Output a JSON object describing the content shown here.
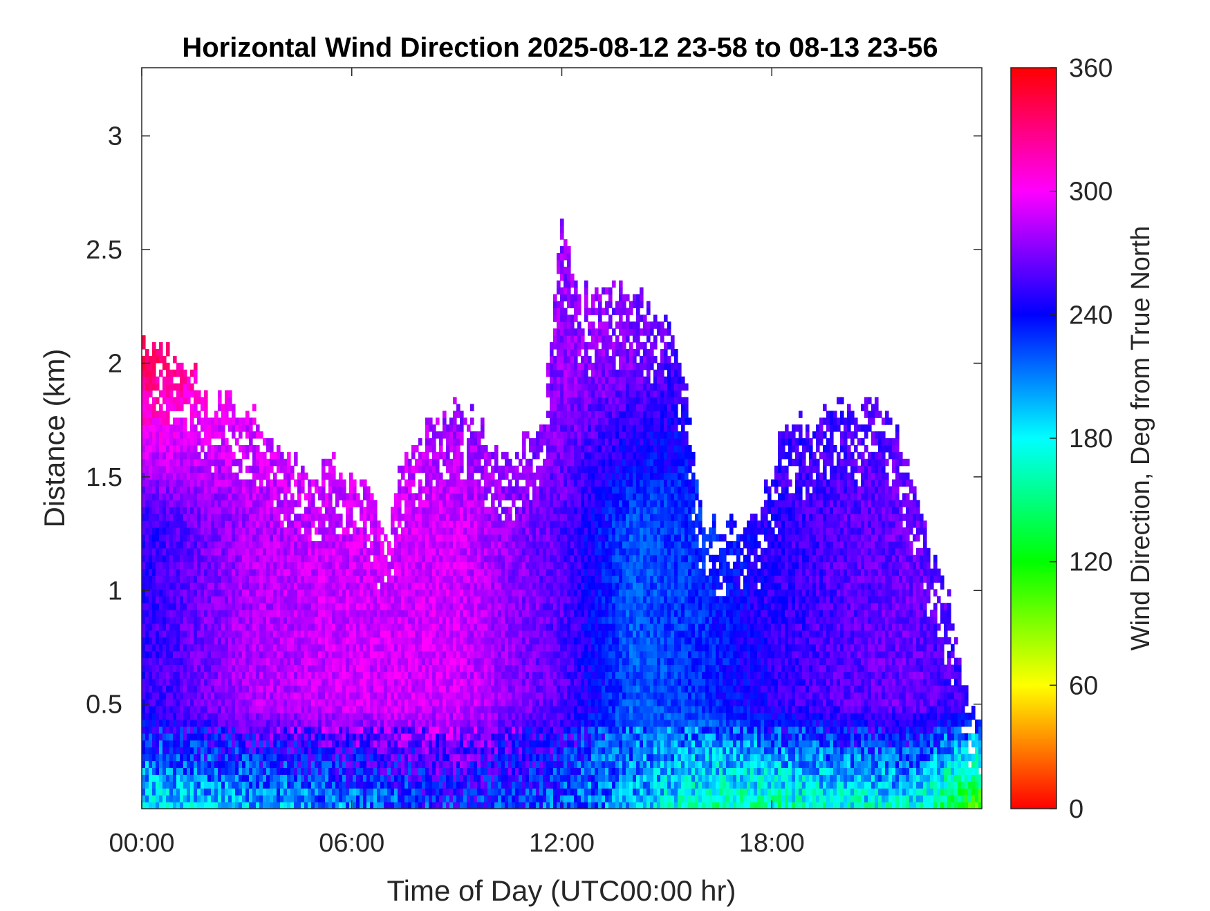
{
  "chart_data": {
    "type": "heatmap",
    "title": "Horizontal Wind Direction 2025-08-12 23-58 to 08-13 23-56",
    "xlabel": "Time of Day (UTC00:00 hr)",
    "ylabel": "Distance (km)",
    "colorbar_label": "Wind Direction, Deg from True North",
    "x_ticks": [
      "00:00",
      "06:00",
      "12:00",
      "18:00"
    ],
    "x_tick_hours": [
      0,
      6,
      12,
      18
    ],
    "xlim_hours": [
      0,
      24
    ],
    "y_ticks": [
      "0.5",
      "1",
      "1.5",
      "2",
      "2.5",
      "3"
    ],
    "y_tick_values": [
      0.5,
      1,
      1.5,
      2,
      2.5,
      3
    ],
    "ylim": [
      0.04,
      3.3
    ],
    "colorbar_ticks": [
      "0",
      "60",
      "120",
      "180",
      "240",
      "300",
      "360"
    ],
    "colorbar_tick_values": [
      0,
      60,
      120,
      180,
      240,
      300,
      360
    ],
    "clim": [
      0,
      360
    ],
    "colormap": [
      "#ff0000",
      "#ffff00",
      "#00ff00",
      "#00ffff",
      "#0000ff",
      "#ff00ff",
      "#ff0000"
    ],
    "grid": false,
    "legend": "colorbar-right",
    "data_top_profile": {
      "hours": [
        0,
        0.5,
        1,
        1.5,
        2,
        2.5,
        3,
        3.5,
        4,
        4.5,
        5,
        5.5,
        6,
        6.5,
        7,
        7.5,
        8,
        8.5,
        9,
        9.5,
        10,
        10.5,
        11,
        11.5,
        11.8,
        12,
        12.3,
        12.6,
        13,
        13.5,
        14,
        14.5,
        15,
        15.5,
        16,
        16.5,
        17,
        17.5,
        18,
        18.5,
        19,
        19.5,
        20,
        20.5,
        21,
        21.5,
        22,
        22.5,
        23,
        23.5,
        24
      ],
      "top_km": [
        2.1,
        2.1,
        2.0,
        1.95,
        1.85,
        1.85,
        1.8,
        1.7,
        1.6,
        1.55,
        1.5,
        1.55,
        1.5,
        1.45,
        1.25,
        1.6,
        1.7,
        1.75,
        1.8,
        1.75,
        1.65,
        1.6,
        1.65,
        1.75,
        2.3,
        2.6,
        2.45,
        2.3,
        2.3,
        2.35,
        2.3,
        2.25,
        2.2,
        1.95,
        1.3,
        1.3,
        1.3,
        1.3,
        1.55,
        1.75,
        1.7,
        1.75,
        1.85,
        1.8,
        1.9,
        1.7,
        1.5,
        1.2,
        1.0,
        0.6,
        0.35
      ]
    },
    "dominant_direction_deg": {
      "note_free_profile": true,
      "hours": [
        0,
        3,
        6,
        9,
        12,
        14,
        16,
        18,
        20,
        22,
        24
      ],
      "near_surface": [
        175,
        185,
        200,
        230,
        215,
        200,
        160,
        150,
        160,
        170,
        90
      ],
      "mid_level": [
        250,
        280,
        290,
        290,
        260,
        220,
        230,
        250,
        260,
        265,
        250
      ],
      "upper_level": [
        340,
        300,
        290,
        270,
        275,
        270,
        250,
        250,
        255,
        260,
        255
      ]
    }
  }
}
